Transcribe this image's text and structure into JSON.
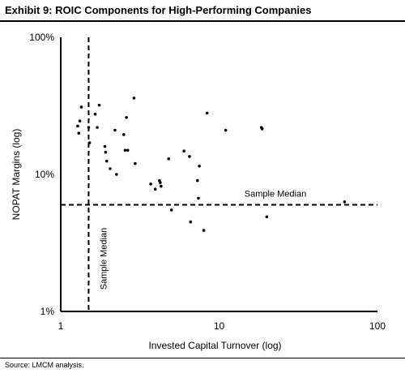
{
  "exhibit_title": "Exhibit 9: ROIC Components for High-Performing Companies",
  "source_note": "Source: LMCM analysis.",
  "chart_data": {
    "type": "scatter",
    "title": "Exhibit 9: ROIC Components for High-Performing Companies",
    "xlabel": "Invested Capital Turnover (log)",
    "ylabel": "NOPAT Margins (log)",
    "x_scale": "log",
    "y_scale": "log",
    "xlim": [
      1,
      100
    ],
    "ylim": [
      0.01,
      1.0
    ],
    "x_ticks": [
      1,
      10,
      100
    ],
    "x_tick_labels": [
      "1",
      "10",
      "100"
    ],
    "y_ticks": [
      0.01,
      0.1,
      1.0
    ],
    "y_tick_labels": [
      "1%",
      "10%",
      "100%"
    ],
    "grid": false,
    "legend": "none",
    "marker_color": "#000000",
    "reference_lines": [
      {
        "orientation": "vertical",
        "x": 1.5,
        "label": "Sample Median"
      },
      {
        "orientation": "horizontal",
        "y": 0.06,
        "label": "Sample Median"
      }
    ],
    "points": [
      {
        "x": 1.35,
        "y": 0.31
      },
      {
        "x": 1.32,
        "y": 0.245
      },
      {
        "x": 1.28,
        "y": 0.225
      },
      {
        "x": 1.3,
        "y": 0.2
      },
      {
        "x": 1.5,
        "y": 0.22
      },
      {
        "x": 1.52,
        "y": 0.17
      },
      {
        "x": 1.65,
        "y": 0.275
      },
      {
        "x": 1.75,
        "y": 0.32
      },
      {
        "x": 1.7,
        "y": 0.22
      },
      {
        "x": 1.9,
        "y": 0.16
      },
      {
        "x": 1.92,
        "y": 0.145
      },
      {
        "x": 1.95,
        "y": 0.125
      },
      {
        "x": 2.05,
        "y": 0.11
      },
      {
        "x": 2.2,
        "y": 0.21
      },
      {
        "x": 2.25,
        "y": 0.1
      },
      {
        "x": 2.5,
        "y": 0.195
      },
      {
        "x": 2.55,
        "y": 0.15
      },
      {
        "x": 2.6,
        "y": 0.26
      },
      {
        "x": 2.65,
        "y": 0.15
      },
      {
        "x": 2.9,
        "y": 0.36
      },
      {
        "x": 2.95,
        "y": 0.12
      },
      {
        "x": 3.7,
        "y": 0.085
      },
      {
        "x": 3.95,
        "y": 0.078
      },
      {
        "x": 4.2,
        "y": 0.09
      },
      {
        "x": 4.25,
        "y": 0.087
      },
      {
        "x": 4.3,
        "y": 0.082
      },
      {
        "x": 4.8,
        "y": 0.13
      },
      {
        "x": 5.0,
        "y": 0.055
      },
      {
        "x": 6.0,
        "y": 0.148
      },
      {
        "x": 6.5,
        "y": 0.135
      },
      {
        "x": 6.6,
        "y": 0.045
      },
      {
        "x": 7.3,
        "y": 0.09
      },
      {
        "x": 7.4,
        "y": 0.067
      },
      {
        "x": 7.5,
        "y": 0.115
      },
      {
        "x": 8.0,
        "y": 0.039
      },
      {
        "x": 8.4,
        "y": 0.28
      },
      {
        "x": 11.0,
        "y": 0.21
      },
      {
        "x": 18.5,
        "y": 0.22
      },
      {
        "x": 18.7,
        "y": 0.215
      },
      {
        "x": 20.0,
        "y": 0.049
      },
      {
        "x": 62.0,
        "y": 0.063
      }
    ]
  }
}
